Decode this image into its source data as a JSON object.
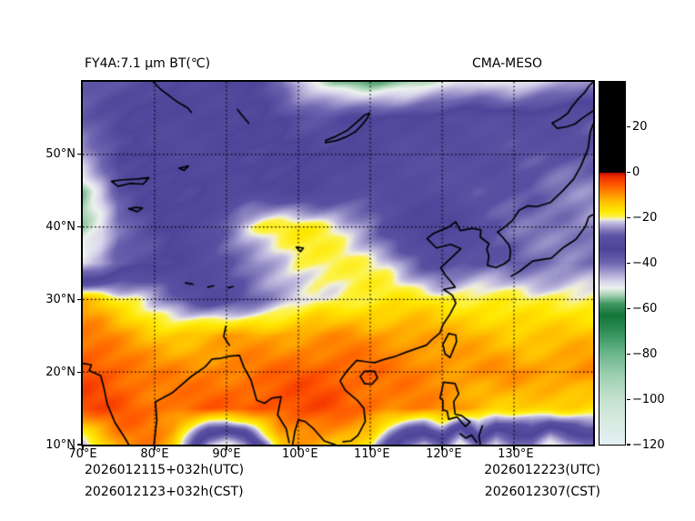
{
  "header": {
    "left_title": "FY4A:7.1 μm BT(℃)",
    "right_title": "CMA-MESO"
  },
  "footer": {
    "left_lines": [
      "2026012115+032h(UTC)",
      "2026012123+032h(CST)"
    ],
    "right_lines": [
      "2026012223(UTC)",
      "2026012307(CST)"
    ]
  },
  "chart_data": {
    "type": "heatmap",
    "title": "FY4A:7.1 μm BT(℃)",
    "subtitle": "CMA-MESO",
    "units": "°C",
    "lon_range": [
      70,
      141
    ],
    "lat_range": [
      10,
      60
    ],
    "grid_on": true,
    "x_axis": {
      "tick_values": [
        70,
        80,
        90,
        100,
        110,
        120,
        130
      ],
      "tick_labels": [
        "70°E",
        "80°E",
        "90°E",
        "100°E",
        "110°E",
        "120°E",
        "130°E"
      ]
    },
    "y_axis": {
      "tick_values": [
        10,
        20,
        30,
        40,
        50
      ],
      "tick_labels": [
        "10°N",
        "20°N",
        "30°N",
        "40°N",
        "50°N"
      ]
    },
    "grid_lons": [
      80,
      90,
      100,
      110,
      120,
      130
    ],
    "grid_lats": [
      20,
      30,
      40,
      50
    ],
    "colorbar": {
      "vmin": -120,
      "vmax": 40,
      "tick_values": [
        20,
        0,
        -20,
        -40,
        -60,
        -80,
        -100,
        -120
      ],
      "tick_labels": [
        "20",
        "0",
        "−20",
        "−40",
        "−60",
        "−80",
        "−100",
        "−120"
      ],
      "stops": [
        [
          -120,
          "#e4f1f7"
        ],
        [
          -110,
          "#d9ece1"
        ],
        [
          -100,
          "#c5e2cf"
        ],
        [
          -90,
          "#a0d1b3"
        ],
        [
          -80,
          "#6db78e"
        ],
        [
          -70,
          "#2f8f55"
        ],
        [
          -63,
          "#13763a"
        ],
        [
          -58,
          "#3f9760"
        ],
        [
          -54,
          "#a8d3b5"
        ],
        [
          -51,
          "#edf2ee"
        ],
        [
          -48,
          "#d8d4eb"
        ],
        [
          -44,
          "#a49cce"
        ],
        [
          -40,
          "#6f66b1"
        ],
        [
          -34,
          "#4e4499"
        ],
        [
          -28,
          "#5b51a3"
        ],
        [
          -25,
          "#8a82bf"
        ],
        [
          -22,
          "#c6c1e3"
        ],
        [
          -20.6,
          "#f1efda"
        ],
        [
          -19.5,
          "#fdf34a"
        ],
        [
          -17,
          "#ffe800"
        ],
        [
          -13,
          "#ffc100"
        ],
        [
          -9,
          "#ff8b00"
        ],
        [
          -5,
          "#ff5500"
        ],
        [
          -2,
          "#f03000"
        ],
        [
          -0.05,
          "#c80f00"
        ],
        [
          0,
          "#000000"
        ],
        [
          40,
          "#000000"
        ]
      ]
    },
    "bt_grid": {
      "lon_start": 70,
      "lon_step": 2.5,
      "lat_start": 60,
      "lat_step": -5,
      "values": [
        [
          -38,
          -37,
          -36,
          -35,
          -34,
          -34,
          -33,
          -33,
          -34,
          -34,
          -35,
          -40,
          -48,
          -52,
          -55,
          -56,
          -56,
          -55,
          -55,
          -54,
          -52,
          -50,
          -48,
          -50,
          -52,
          -50,
          -48,
          -45,
          -42
        ],
        [
          -36,
          -35,
          -35,
          -34,
          -34,
          -33,
          -33,
          -33,
          -33,
          -34,
          -34,
          -34,
          -35,
          -35,
          -35,
          -34,
          -34,
          -33,
          -33,
          -32,
          -32,
          -31,
          -31,
          -30,
          -30,
          -30,
          -29,
          -29,
          -28
        ],
        [
          -46,
          -40,
          -35,
          -34,
          -33,
          -33,
          -32,
          -32,
          -32,
          -33,
          -33,
          -33,
          -34,
          -34,
          -33,
          -33,
          -32,
          -32,
          -31,
          -31,
          -30,
          -30,
          -29,
          -29,
          -28,
          -28,
          -28,
          -27,
          -27
        ],
        [
          -55,
          -48,
          -38,
          -35,
          -34,
          -33,
          -33,
          -32,
          -32,
          -32,
          -33,
          -33,
          -33,
          -33,
          -32,
          -32,
          -31,
          -31,
          -30,
          -30,
          -29,
          -29,
          -28,
          -28,
          -27,
          -27,
          -26,
          -26,
          -26
        ],
        [
          -55,
          -50,
          -40,
          -36,
          -34,
          -33,
          -32,
          -30,
          -26,
          -21,
          -19,
          -19,
          -19,
          -19,
          -20,
          -22,
          -25,
          -30,
          -33,
          -34,
          -33,
          -31,
          -29,
          -28,
          -27,
          -27,
          -26,
          -26,
          -25
        ],
        [
          -48,
          -45,
          -38,
          -36,
          -35,
          -33,
          -32,
          -31,
          -30,
          -28,
          -25,
          -22,
          -19,
          -19,
          -19,
          -19,
          -19,
          -20,
          -24,
          -28,
          -31,
          -30,
          -29,
          -28,
          -28,
          -27,
          -27,
          -26,
          -26
        ],
        [
          -12,
          -14,
          -18,
          -20,
          -24,
          -28,
          -31,
          -32,
          -30,
          -28,
          -26,
          -24,
          -22,
          -19,
          -19,
          -18,
          -18,
          -18,
          -18,
          -18,
          -19,
          -19,
          -19,
          -19,
          -19,
          -19,
          -18,
          -18,
          -18
        ],
        [
          -8,
          -9,
          -11,
          -13,
          -14,
          -14,
          -13,
          -12,
          -11,
          -10,
          -10,
          -10,
          -10,
          -10,
          -10,
          -10,
          -11,
          -11,
          -11,
          -11,
          -12,
          -12,
          -12,
          -12,
          -13,
          -13,
          -13,
          -13,
          -13
        ],
        [
          -5,
          -5,
          -6,
          -7,
          -8,
          -8,
          -8,
          -7,
          -7,
          -7,
          -7,
          -7,
          -6,
          -6,
          -6,
          -7,
          -7,
          -8,
          -8,
          -8,
          -8,
          -9,
          -9,
          -9,
          -9,
          -10,
          -10,
          -10,
          -10
        ],
        [
          -4,
          -4,
          -4,
          -5,
          -6,
          -6,
          -6,
          -6,
          -6,
          -6,
          -5,
          -5,
          -5,
          -5,
          -5,
          -6,
          -6,
          -7,
          -7,
          -8,
          -9,
          -10,
          -12,
          -14,
          -15,
          -16,
          -16,
          -16,
          -16
        ],
        [
          -22,
          -15,
          -9,
          -8,
          -9,
          -14,
          -28,
          -45,
          -52,
          -45,
          -30,
          -14,
          -10,
          -10,
          -12,
          -14,
          -18,
          -30,
          -40,
          -45,
          -35,
          -55,
          -38,
          -50,
          -42,
          -40,
          -52,
          -45,
          -40
        ]
      ]
    },
    "coastlines": [
      [
        [
          70,
          21.2
        ],
        [
          71.2,
          21
        ],
        [
          70.9,
          20.2
        ],
        [
          72.5,
          19.5
        ],
        [
          72.9,
          18
        ],
        [
          73.4,
          15.6
        ],
        [
          74.5,
          13
        ],
        [
          75.8,
          11
        ],
        [
          76.4,
          10
        ]
      ],
      [
        [
          79.9,
          10
        ],
        [
          80.3,
          13.4
        ],
        [
          80.1,
          15.9
        ],
        [
          82.4,
          17.1
        ],
        [
          85.1,
          19.4
        ],
        [
          87,
          20.7
        ],
        [
          88,
          21.8
        ],
        [
          89.2,
          21.9
        ],
        [
          90.5,
          22.2
        ],
        [
          91.8,
          22.3
        ],
        [
          92.4,
          20.7
        ],
        [
          93.4,
          18.9
        ],
        [
          94.2,
          16.1
        ],
        [
          95.3,
          15.7
        ],
        [
          96.3,
          16.4
        ],
        [
          97.6,
          16.6
        ],
        [
          97.1,
          14.1
        ],
        [
          98.3,
          12.2
        ],
        [
          98.7,
          10.3
        ]
      ],
      [
        [
          99.2,
          10
        ],
        [
          99.5,
          11.8
        ],
        [
          100,
          13.4
        ],
        [
          100.9,
          13.2
        ],
        [
          102.1,
          12.2
        ],
        [
          103.6,
          10.5
        ],
        [
          105.1,
          10
        ]
      ],
      [
        [
          106.2,
          10.4
        ],
        [
          107.3,
          10.5
        ],
        [
          108.3,
          11.3
        ],
        [
          109.3,
          13.2
        ],
        [
          109.1,
          15
        ],
        [
          108.2,
          16.1
        ],
        [
          106.5,
          17.5
        ],
        [
          105.8,
          18.8
        ],
        [
          106.8,
          20.2
        ],
        [
          108.1,
          21.6
        ],
        [
          109.6,
          21.4
        ],
        [
          110.6,
          21.3
        ],
        [
          111.8,
          21.7
        ],
        [
          113.3,
          22.1
        ],
        [
          114.9,
          22.7
        ],
        [
          116.6,
          23.3
        ],
        [
          117.8,
          23.7
        ],
        [
          118.6,
          24.5
        ],
        [
          119.7,
          25.4
        ],
        [
          120.1,
          26.5
        ],
        [
          121.1,
          28
        ],
        [
          121.9,
          29.5
        ],
        [
          121.4,
          30.6
        ],
        [
          120.2,
          31.4
        ],
        [
          121.8,
          31.7
        ],
        [
          121.2,
          32.5
        ],
        [
          120.4,
          33.4
        ],
        [
          119.8,
          34.4
        ],
        [
          120.9,
          35.4
        ],
        [
          122.6,
          37
        ],
        [
          121.2,
          37.6
        ],
        [
          119.2,
          37.1
        ],
        [
          117.9,
          38.4
        ],
        [
          118.8,
          39.1
        ],
        [
          120.9,
          40
        ],
        [
          121.9,
          40.7
        ],
        [
          122.5,
          39.5
        ],
        [
          124.2,
          39.8
        ]
      ],
      [
        [
          124.2,
          39.8
        ],
        [
          125.4,
          39.6
        ],
        [
          125.3,
          38.6
        ],
        [
          126.5,
          37.7
        ],
        [
          126.2,
          36.9
        ],
        [
          126.5,
          36
        ],
        [
          126.3,
          34.7
        ],
        [
          127.5,
          34.4
        ],
        [
          128.6,
          34.9
        ],
        [
          129.4,
          35.5
        ],
        [
          129.5,
          36.8
        ],
        [
          129.3,
          37.5
        ],
        [
          128.4,
          38.6
        ],
        [
          127.7,
          39.3
        ],
        [
          128.7,
          40
        ],
        [
          129.8,
          40.9
        ],
        [
          130.7,
          42.3
        ],
        [
          131.9,
          42.9
        ],
        [
          133.2,
          42.8
        ],
        [
          135.1,
          43.4
        ],
        [
          136.8,
          45
        ],
        [
          138.3,
          46.6
        ],
        [
          139.3,
          48.4
        ],
        [
          140.3,
          50.8
        ],
        [
          140.6,
          53
        ],
        [
          141,
          54.2
        ]
      ],
      [
        [
          129.6,
          33.2
        ],
        [
          130.8,
          33.9
        ],
        [
          132.6,
          35.3
        ],
        [
          135.2,
          35.7
        ],
        [
          136.9,
          37.2
        ],
        [
          138.6,
          38.3
        ],
        [
          139.9,
          40
        ],
        [
          140.4,
          41.4
        ],
        [
          141,
          41.7
        ]
      ],
      [
        [
          141,
          56
        ],
        [
          139.5,
          55
        ],
        [
          138.5,
          54.2
        ],
        [
          137.3,
          53.8
        ],
        [
          136,
          53.6
        ],
        [
          135.3,
          54.3
        ],
        [
          136.4,
          54.9
        ],
        [
          137.5,
          55.7
        ],
        [
          138,
          56.5
        ],
        [
          138.8,
          57.5
        ],
        [
          139.8,
          58.5
        ],
        [
          140.5,
          59.5
        ],
        [
          141,
          60
        ]
      ],
      [
        [
          121.9,
          25.1
        ],
        [
          120.9,
          25.3
        ],
        [
          120.1,
          23.8
        ],
        [
          120.4,
          22.5
        ],
        [
          121.1,
          22
        ],
        [
          122,
          24.2
        ],
        [
          121.9,
          25.1
        ]
      ],
      [
        [
          109.2,
          20.1
        ],
        [
          110.6,
          20.1
        ],
        [
          111,
          19.2
        ],
        [
          110.2,
          18.3
        ],
        [
          109.2,
          18.4
        ],
        [
          108.6,
          19.4
        ],
        [
          109.2,
          20.1
        ]
      ],
      [
        [
          120.1,
          16.1
        ],
        [
          119.7,
          16.4
        ],
        [
          120.2,
          18.6
        ],
        [
          121.8,
          18.4
        ],
        [
          122.3,
          17
        ],
        [
          121.6,
          15.9
        ],
        [
          121.8,
          14.2
        ],
        [
          122.7,
          14
        ],
        [
          123.9,
          13.1
        ],
        [
          123.2,
          12.5
        ],
        [
          122.1,
          13.8
        ],
        [
          120.9,
          13.5
        ],
        [
          120.7,
          14.6
        ],
        [
          120.1,
          14.8
        ],
        [
          120.1,
          16.1
        ]
      ],
      [
        [
          125.6,
          12.6
        ],
        [
          125.1,
          11.2
        ],
        [
          125.3,
          10.1
        ]
      ],
      [
        [
          122.5,
          11.5
        ],
        [
          123.3,
          10.9
        ],
        [
          124.1,
          11.3
        ],
        [
          124.8,
          10.3
        ]
      ],
      [
        [
          103.8,
          51.6
        ],
        [
          105.3,
          51.9
        ],
        [
          106.6,
          52.4
        ],
        [
          107.9,
          53.1
        ],
        [
          108.7,
          53.9
        ],
        [
          109.6,
          55
        ],
        [
          109.9,
          55.7
        ],
        [
          109.2,
          55.4
        ],
        [
          108.2,
          54.5
        ],
        [
          106.8,
          53.3
        ],
        [
          105,
          52.4
        ],
        [
          103.8,
          51.9
        ],
        [
          103.8,
          51.6
        ]
      ],
      [
        [
          74,
          46.3
        ],
        [
          75.6,
          46.5
        ],
        [
          77.6,
          46.6
        ],
        [
          79.2,
          46.8
        ],
        [
          78.4,
          45.9
        ],
        [
          76.6,
          46
        ],
        [
          74.9,
          45.6
        ],
        [
          74,
          46.3
        ]
      ],
      [
        [
          76.4,
          42.5
        ],
        [
          77.4,
          42.7
        ],
        [
          78.3,
          42.6
        ],
        [
          77.6,
          42.1
        ],
        [
          76.4,
          42.5
        ]
      ],
      [
        [
          83.4,
          48.1
        ],
        [
          84.7,
          48.4
        ],
        [
          84.1,
          47.8
        ],
        [
          83.4,
          48.1
        ]
      ],
      [
        [
          79.8,
          60
        ],
        [
          80.8,
          59
        ],
        [
          82,
          58.1
        ],
        [
          83.2,
          57.2
        ],
        [
          84.6,
          56.4
        ],
        [
          85.1,
          55.8
        ]
      ],
      [
        [
          91.5,
          56.2
        ],
        [
          92.3,
          55.2
        ],
        [
          93.1,
          54.3
        ]
      ],
      [
        [
          99.7,
          37.2
        ],
        [
          100.7,
          37.1
        ],
        [
          100.3,
          36.6
        ],
        [
          99.7,
          37.2
        ]
      ],
      [
        [
          84.3,
          32.3
        ],
        [
          85.3,
          32.1
        ]
      ],
      [
        [
          87.4,
          31.7
        ],
        [
          88.2,
          31.9
        ]
      ],
      [
        [
          90.2,
          31.6
        ],
        [
          90.9,
          31.8
        ]
      ],
      [
        [
          89.9,
          26.3
        ],
        [
          89.6,
          24.9
        ],
        [
          90.4,
          23.7
        ]
      ]
    ]
  }
}
